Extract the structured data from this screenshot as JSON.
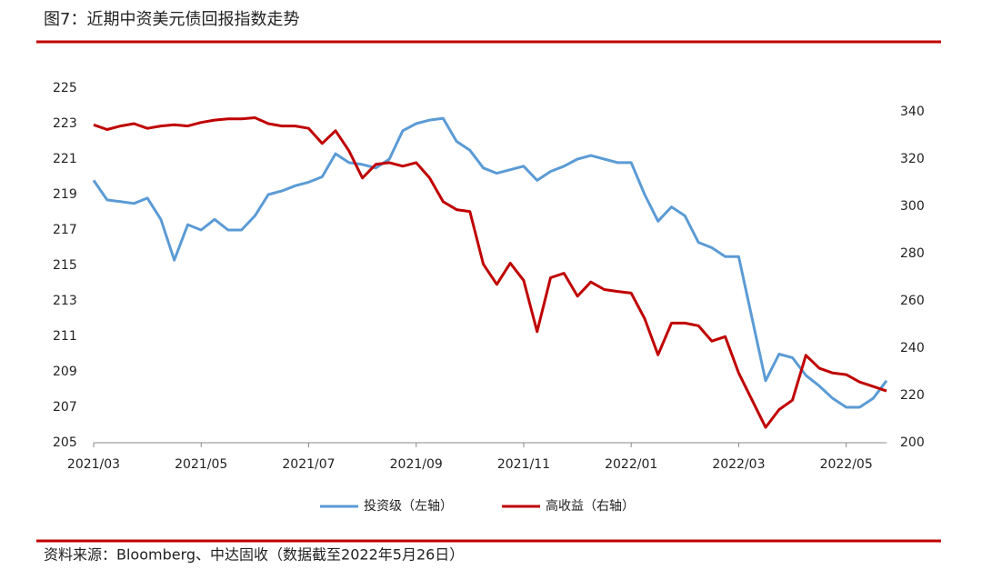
{
  "chart_data": {
    "type": "line",
    "title": "图7：近期中资美元债回报指数走势",
    "source": "资料来源：Bloomberg、中达固收（数据截至2022年5月26日）",
    "categories": [
      "2021/03",
      null,
      null,
      null,
      null,
      null,
      null,
      null,
      "2021/05",
      null,
      null,
      null,
      null,
      null,
      null,
      null,
      "2021/07",
      null,
      null,
      null,
      null,
      null,
      null,
      null,
      "2021/09",
      null,
      null,
      null,
      null,
      null,
      null,
      null,
      "2021/11",
      null,
      null,
      null,
      null,
      null,
      null,
      null,
      "2022/01",
      null,
      null,
      null,
      null,
      null,
      null,
      null,
      "2022/03",
      null,
      null,
      null,
      null,
      null,
      null,
      null,
      "2022/05",
      null,
      null,
      null
    ],
    "series": [
      {
        "name": "投资级（左轴）",
        "color": "#5b9bd5",
        "axis": "y",
        "values": [
          219.8,
          218.7,
          218.6,
          218.5,
          218.8,
          217.6,
          215.3,
          217.3,
          217.0,
          217.6,
          217.0,
          217.0,
          217.8,
          219.0,
          219.2,
          219.5,
          219.7,
          220.0,
          221.3,
          220.8,
          220.7,
          220.5,
          221.0,
          222.6,
          223.0,
          223.2,
          223.3,
          222.0,
          221.5,
          220.5,
          220.2,
          220.4,
          220.6,
          219.8,
          220.3,
          220.6,
          221.0,
          221.2,
          221.0,
          220.8,
          220.8,
          219.0,
          217.5,
          218.3,
          217.8,
          216.3,
          216.0,
          215.5,
          215.5,
          212.0,
          208.5,
          210.0,
          209.8,
          208.8,
          208.2,
          207.5,
          207.0,
          207.0,
          207.5,
          208.5
        ]
      },
      {
        "name": "高收益（右轴）",
        "color": "#c00000",
        "axis": "y2",
        "values": [
          334.5,
          332.5,
          334,
          335,
          333,
          334,
          334.5,
          334,
          335.5,
          336.5,
          337,
          337,
          337.5,
          335,
          334,
          334,
          333,
          326.6,
          332,
          323.5,
          312,
          317.8,
          318.5,
          317,
          318.5,
          312,
          302,
          298.6,
          297.8,
          275.5,
          267,
          276,
          268.7,
          247,
          269.8,
          271.7,
          262,
          268,
          264.8,
          264,
          263.3,
          252.5,
          237.2,
          250.6,
          250.6,
          249.5,
          243,
          244.9,
          229.5,
          218,
          206.5,
          214,
          218,
          237,
          231.5,
          229.5,
          228.8,
          225.7,
          223.8,
          221.9
        ]
      }
    ],
    "ylim": [
      205,
      225
    ],
    "yticks": [
      205,
      207,
      209,
      211,
      213,
      215,
      217,
      219,
      221,
      223,
      225
    ],
    "y2lim": [
      200,
      350
    ],
    "y2ticks": [
      200,
      220,
      240,
      260,
      280,
      300,
      320,
      340
    ],
    "grid": false
  }
}
